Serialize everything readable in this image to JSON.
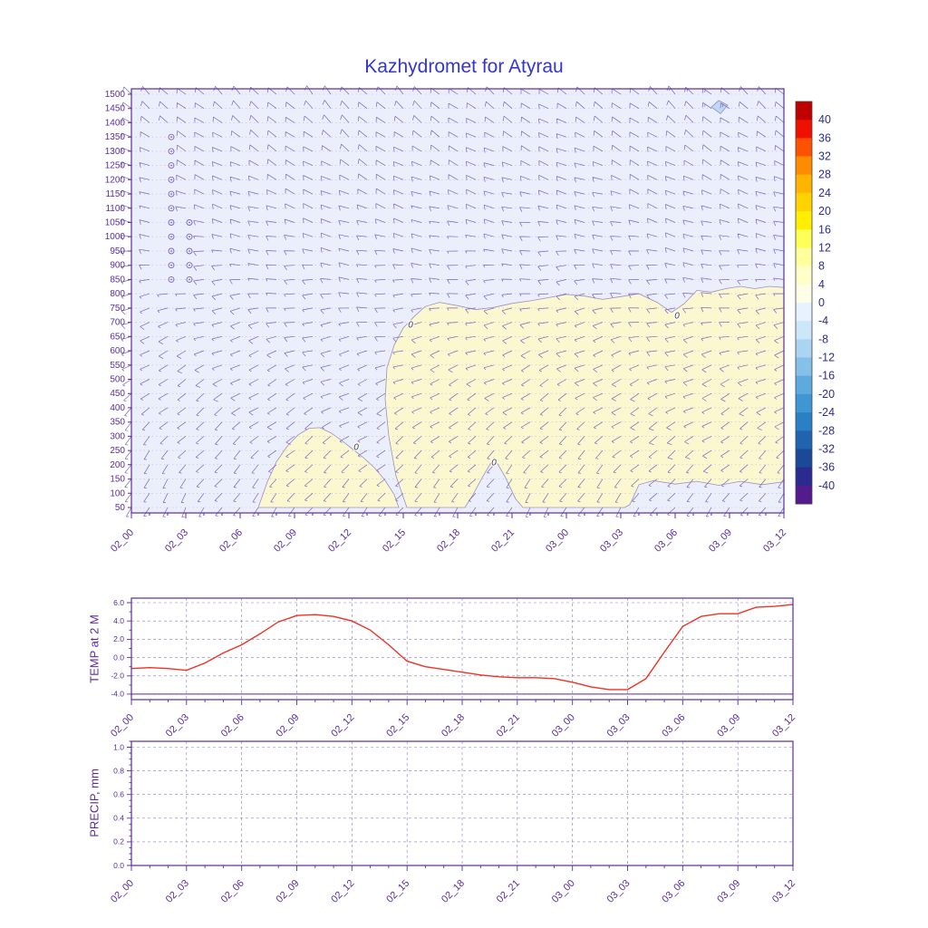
{
  "chart_data": {
    "type": "meteogram",
    "title": "Kazhydromet for Atyrau",
    "hours_span": 36,
    "time_labels": [
      "02_00",
      "02_03",
      "02_06",
      "02_09",
      "02_12",
      "02_15",
      "02_18",
      "02_21",
      "03_00",
      "03_03",
      "03_06",
      "03_09",
      "03_12"
    ],
    "style": {
      "axis_color": "#5a2ca0",
      "grid_color": "#8468b8",
      "barb_color": "#7d63c0",
      "level_line_color": "#c6bbe6",
      "title_color": "#3535cf"
    },
    "wind_panel": {
      "type": "wind-barb-cross-section",
      "level_ticks": [
        1500,
        1450,
        1400,
        1350,
        1300,
        1250,
        1200,
        1150,
        1100,
        1050,
        1000,
        950,
        900,
        850,
        800,
        750,
        700,
        650,
        600,
        550,
        500,
        450,
        400,
        350,
        300,
        250,
        200,
        150,
        100,
        50
      ],
      "background_color": "#eaeffb",
      "warm_fill": "#fbf8d0",
      "cold_spot_fill": "#bdd9f3",
      "contour_color": "#9a8fc9",
      "contour_value": 0,
      "contour_label_text": "0",
      "warm_regions": [
        [
          [
            15.2,
            50
          ],
          [
            14.6,
            160
          ],
          [
            14.2,
            300
          ],
          [
            14.0,
            430
          ],
          [
            14.1,
            540
          ],
          [
            14.5,
            620
          ],
          [
            15.0,
            680
          ],
          [
            15.6,
            720
          ],
          [
            16.2,
            755
          ],
          [
            17.0,
            770
          ],
          [
            18.0,
            758
          ],
          [
            19.0,
            744
          ],
          [
            20.0,
            752
          ],
          [
            21.0,
            766
          ],
          [
            22.0,
            775
          ],
          [
            23.0,
            786
          ],
          [
            24.0,
            798
          ],
          [
            25.0,
            792
          ],
          [
            26.0,
            780
          ],
          [
            27.0,
            790
          ],
          [
            28.0,
            800
          ],
          [
            29.0,
            770
          ],
          [
            29.8,
            735
          ],
          [
            30.5,
            765
          ],
          [
            31.2,
            812
          ],
          [
            32.0,
            806
          ],
          [
            32.8,
            818
          ],
          [
            33.6,
            826
          ],
          [
            34.4,
            818
          ],
          [
            35.2,
            826
          ],
          [
            36,
            822
          ],
          [
            36,
            140
          ],
          [
            34.8,
            130
          ],
          [
            33.6,
            142
          ],
          [
            32.4,
            128
          ],
          [
            31.2,
            142
          ],
          [
            30.0,
            132
          ],
          [
            28.8,
            144
          ],
          [
            28.0,
            130
          ],
          [
            27.5,
            60
          ],
          [
            27.2,
            50
          ],
          [
            21.6,
            50
          ],
          [
            21.2,
            80
          ],
          [
            20.6,
            160
          ],
          [
            20.0,
            225
          ],
          [
            19.4,
            160
          ],
          [
            18.8,
            90
          ],
          [
            18.4,
            50
          ]
        ],
        [
          [
            7.0,
            50
          ],
          [
            7.5,
            140
          ],
          [
            8.0,
            210
          ],
          [
            8.6,
            265
          ],
          [
            9.2,
            305
          ],
          [
            9.8,
            328
          ],
          [
            10.4,
            330
          ],
          [
            11.0,
            312
          ],
          [
            11.6,
            285
          ],
          [
            12.2,
            255
          ],
          [
            12.8,
            225
          ],
          [
            13.4,
            190
          ],
          [
            14.0,
            145
          ],
          [
            14.5,
            95
          ],
          [
            14.75,
            50
          ]
        ]
      ],
      "cold_spots": [
        [
          [
            32.0,
            1455
          ],
          [
            32.4,
            1478
          ],
          [
            32.9,
            1462
          ],
          [
            32.5,
            1432
          ]
        ]
      ],
      "contour_labels": [
        [
          15.4,
          690
        ],
        [
          30.1,
          722
        ],
        [
          12.4,
          262
        ],
        [
          20.0,
          208
        ]
      ],
      "calm_circles": [
        [
          2.2,
          1350
        ],
        [
          2.2,
          1300
        ],
        [
          2.2,
          1250
        ],
        [
          2.2,
          1200
        ],
        [
          2.2,
          1150
        ],
        [
          2.2,
          1100
        ],
        [
          2.2,
          1050
        ],
        [
          3.2,
          1050
        ],
        [
          2.2,
          1000
        ],
        [
          3.2,
          1000
        ],
        [
          2.2,
          950
        ],
        [
          3.2,
          950
        ],
        [
          2.2,
          900
        ],
        [
          3.2,
          900
        ],
        [
          2.2,
          850
        ],
        [
          3.2,
          850
        ]
      ],
      "wind_grid": {
        "hours": [
          0,
          6,
          12,
          18,
          24,
          30,
          36
        ],
        "levels": [
          50,
          500,
          1000,
          1500
        ],
        "dir": [
          [
            205,
            215,
            220,
            215,
            210,
            220,
            215
          ],
          [
            235,
            240,
            250,
            245,
            240,
            250,
            245
          ],
          [
            275,
            280,
            285,
            280,
            275,
            285,
            280
          ],
          [
            310,
            315,
            320,
            310,
            305,
            315,
            310
          ]
        ],
        "speed": [
          [
            4,
            5,
            5,
            4,
            5,
            6,
            5
          ],
          [
            6,
            7,
            7,
            6,
            7,
            8,
            7
          ],
          [
            8,
            9,
            9,
            8,
            9,
            10,
            9
          ],
          [
            10,
            11,
            10,
            11,
            10,
            12,
            11
          ]
        ]
      }
    },
    "colorbar": {
      "tick_values": [
        40,
        36,
        32,
        28,
        24,
        20,
        16,
        12,
        8,
        4,
        0,
        -4,
        -8,
        -12,
        -16,
        -20,
        -24,
        -28,
        -32,
        -36,
        -40
      ],
      "segment_colors": [
        "#c00000",
        "#ef1000",
        "#ff5200",
        "#ff8c00",
        "#ffb400",
        "#ffd200",
        "#ffee00",
        "#ffff55",
        "#ffff9b",
        "#ffffc8",
        "#ffffe8",
        "#e8f2ff",
        "#cce6fa",
        "#aad4f2",
        "#84c0e8",
        "#5caade",
        "#3e96d2",
        "#2a80c4",
        "#2064b0",
        "#1c4898",
        "#2a2a90",
        "#551a8b"
      ],
      "label_color": "#2d2d8f"
    },
    "temp_panel": {
      "type": "line",
      "ylabel": "TEMP at 2 M",
      "line_color": "#ee3224",
      "ytick_labels": [
        "6.0",
        "4.0",
        "2.0",
        "0.0",
        "-2.0",
        "-4.0"
      ],
      "ytick_values": [
        6,
        4,
        2,
        0,
        -2,
        -4
      ],
      "baseline_value": -4.0,
      "minor_step": 1,
      "draw_line": true,
      "x_hours": [
        0,
        1,
        2,
        3,
        4,
        5,
        6,
        7,
        8,
        9,
        10,
        11,
        12,
        13,
        14,
        15,
        16,
        17,
        18,
        19,
        20,
        21,
        22,
        23,
        24,
        25,
        26,
        27,
        28,
        29,
        30,
        31,
        32,
        33,
        34,
        35,
        36
      ],
      "values": [
        -1.2,
        -1.1,
        -1.2,
        -1.4,
        -0.6,
        0.5,
        1.4,
        2.6,
        3.9,
        4.6,
        4.7,
        4.5,
        4.0,
        3.0,
        1.4,
        -0.4,
        -1.0,
        -1.3,
        -1.6,
        -1.9,
        -2.1,
        -2.2,
        -2.2,
        -2.3,
        -2.7,
        -3.2,
        -3.5,
        -3.5,
        -2.3,
        0.6,
        3.4,
        4.5,
        4.8,
        4.8,
        5.5,
        5.6,
        5.8
      ]
    },
    "precip_panel": {
      "type": "line",
      "ylabel": "PRECIP, mm",
      "ytick_labels": [
        "1.0",
        "0.8",
        "0.6",
        "0.4",
        "0.2",
        "0.0"
      ],
      "ytick_values": [
        1.0,
        0.8,
        0.6,
        0.4,
        0.2,
        0.0
      ],
      "minor_step": 0.05,
      "draw_line": false,
      "x_hours": [
        0,
        1,
        2,
        3,
        4,
        5,
        6,
        7,
        8,
        9,
        10,
        11,
        12,
        13,
        14,
        15,
        16,
        17,
        18,
        19,
        20,
        21,
        22,
        23,
        24,
        25,
        26,
        27,
        28,
        29,
        30,
        31,
        32,
        33,
        34,
        35,
        36
      ],
      "values": [
        0,
        0,
        0,
        0,
        0,
        0,
        0,
        0,
        0,
        0,
        0,
        0,
        0,
        0,
        0,
        0,
        0,
        0,
        0,
        0,
        0,
        0,
        0,
        0,
        0,
        0,
        0,
        0,
        0,
        0,
        0,
        0,
        0,
        0,
        0,
        0,
        0
      ]
    }
  }
}
